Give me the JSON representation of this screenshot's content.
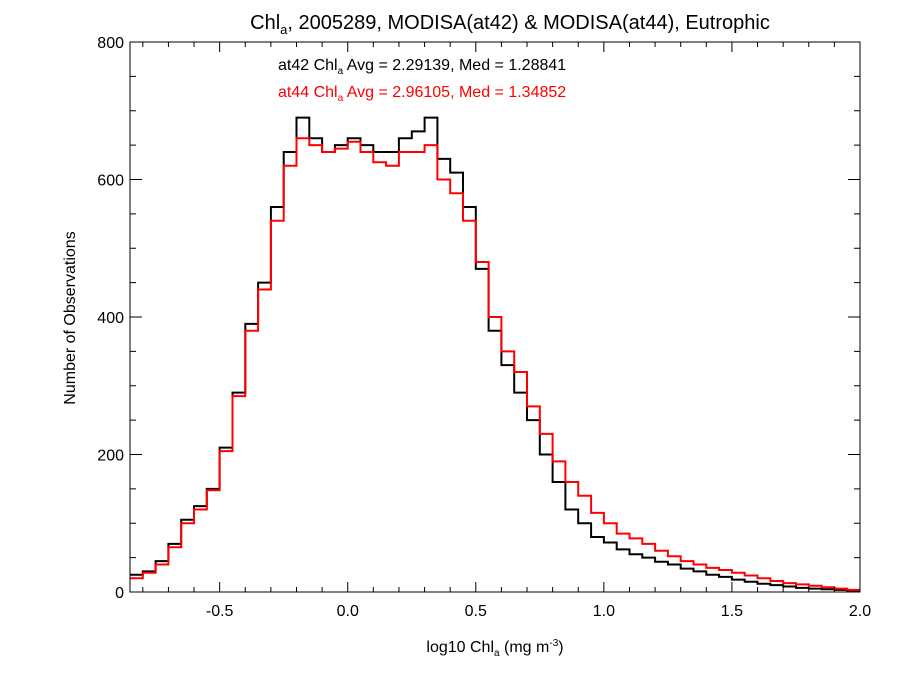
{
  "chart_data": {
    "type": "line",
    "title": {
      "prefix": "Chl",
      "sub": "a",
      "suffix": ", 2005289, MODISA(at42) & MODISA(at44), Eutrophic"
    },
    "xlabel": {
      "prefix": "log10 Chl",
      "sub": "a",
      "mid": " (mg m",
      "sup": "-3",
      "suffix": ")"
    },
    "ylabel": "Number of Observations",
    "xlim": [
      -0.85,
      2.0
    ],
    "ylim": [
      0,
      800
    ],
    "x_ticks": [
      -0.5,
      0.0,
      0.5,
      1.0,
      1.5,
      2.0
    ],
    "x_tick_labels": [
      "-0.5",
      "0.0",
      "0.5",
      "1.0",
      "1.5",
      "2.0"
    ],
    "y_ticks": [
      0,
      200,
      400,
      600,
      800
    ],
    "y_tick_labels": [
      "0",
      "200",
      "400",
      "600",
      "800"
    ],
    "step": "histogram",
    "series": [
      {
        "name": "at42",
        "color": "#000000",
        "annotation": {
          "prefix": "at42 Chl",
          "sub": "a",
          "suffix": " Avg = 2.29139, Med = 1.28841"
        },
        "x": [
          -0.85,
          -0.8,
          -0.75,
          -0.7,
          -0.65,
          -0.6,
          -0.55,
          -0.5,
          -0.45,
          -0.4,
          -0.35,
          -0.3,
          -0.25,
          -0.2,
          -0.15,
          -0.1,
          -0.05,
          0.0,
          0.05,
          0.1,
          0.15,
          0.2,
          0.25,
          0.3,
          0.35,
          0.4,
          0.45,
          0.5,
          0.55,
          0.6,
          0.65,
          0.7,
          0.75,
          0.8,
          0.85,
          0.9,
          0.95,
          1.0,
          1.05,
          1.1,
          1.15,
          1.2,
          1.25,
          1.3,
          1.35,
          1.4,
          1.45,
          1.5,
          1.55,
          1.6,
          1.65,
          1.7,
          1.75,
          1.8,
          1.85,
          1.9,
          1.95
        ],
        "y": [
          25,
          30,
          45,
          70,
          105,
          125,
          150,
          210,
          290,
          390,
          450,
          560,
          640,
          690,
          660,
          640,
          650,
          660,
          650,
          640,
          640,
          660,
          670,
          690,
          630,
          610,
          560,
          470,
          380,
          330,
          290,
          250,
          200,
          160,
          120,
          100,
          80,
          72,
          62,
          55,
          50,
          44,
          40,
          34,
          30,
          25,
          22,
          18,
          15,
          12,
          10,
          8,
          6,
          5,
          4,
          3,
          2
        ]
      },
      {
        "name": "at44",
        "color": "#ff0000",
        "annotation": {
          "prefix": "at44 Chl",
          "sub": "a",
          "suffix": " Avg = 2.96105, Med = 1.34852"
        },
        "x": [
          -0.85,
          -0.8,
          -0.75,
          -0.7,
          -0.65,
          -0.6,
          -0.55,
          -0.5,
          -0.45,
          -0.4,
          -0.35,
          -0.3,
          -0.25,
          -0.2,
          -0.15,
          -0.1,
          -0.05,
          0.0,
          0.05,
          0.1,
          0.15,
          0.2,
          0.25,
          0.3,
          0.35,
          0.4,
          0.45,
          0.5,
          0.55,
          0.6,
          0.65,
          0.7,
          0.75,
          0.8,
          0.85,
          0.9,
          0.95,
          1.0,
          1.05,
          1.1,
          1.15,
          1.2,
          1.25,
          1.3,
          1.35,
          1.4,
          1.45,
          1.5,
          1.55,
          1.6,
          1.65,
          1.7,
          1.75,
          1.8,
          1.85,
          1.9,
          1.95
        ],
        "y": [
          20,
          28,
          40,
          65,
          100,
          120,
          148,
          205,
          285,
          380,
          440,
          540,
          620,
          660,
          650,
          640,
          645,
          655,
          640,
          625,
          620,
          640,
          640,
          650,
          600,
          580,
          540,
          480,
          400,
          350,
          320,
          270,
          230,
          190,
          160,
          140,
          115,
          100,
          85,
          78,
          70,
          60,
          52,
          45,
          40,
          35,
          32,
          28,
          24,
          20,
          16,
          13,
          11,
          9,
          7,
          5,
          3
        ]
      }
    ]
  }
}
